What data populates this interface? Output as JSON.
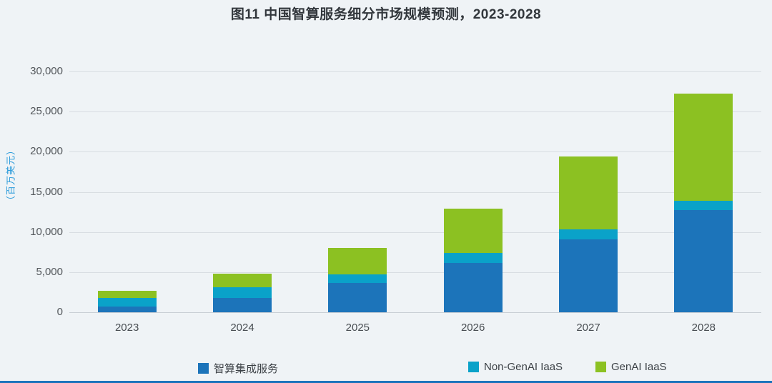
{
  "chart_data": {
    "type": "bar",
    "stacked": true,
    "title": "图11 中国智算服务细分市场规模预测，2023-2028",
    "ylabel": "（百万美元）",
    "unit": "百万美元",
    "categories": [
      "2023",
      "2024",
      "2025",
      "2026",
      "2027",
      "2028"
    ],
    "series": [
      {
        "name": "智算集成服务",
        "color": "#1C74BA",
        "values": [
          700,
          1800,
          3650,
          6100,
          9100,
          12700
        ]
      },
      {
        "name": "Non-GenAI IaaS",
        "color": "#0AA2C9",
        "values": [
          1100,
          1300,
          1050,
          1300,
          1200,
          1200
        ]
      },
      {
        "name": "GenAI IaaS",
        "color": "#8CC122",
        "values": [
          900,
          1700,
          3300,
          5500,
          9100,
          13300
        ]
      }
    ],
    "totals": [
      2700,
      4800,
      8000,
      12900,
      19400,
      27200
    ],
    "ylim": [
      0,
      30000
    ],
    "ytick_step": 5000,
    "yticks": [
      "0",
      "5,000",
      "10,000",
      "15,000",
      "20,000",
      "25,000",
      "30,000"
    ],
    "grid": true,
    "legend_position": "bottom"
  },
  "page": {
    "background_color": "#EFF3F6",
    "footer_bar_color": "#1B74BC",
    "gridline_color": "#D8DDE2",
    "axis_label_color": "#54585C",
    "y_axis_title_color": "#2D9CDB"
  }
}
